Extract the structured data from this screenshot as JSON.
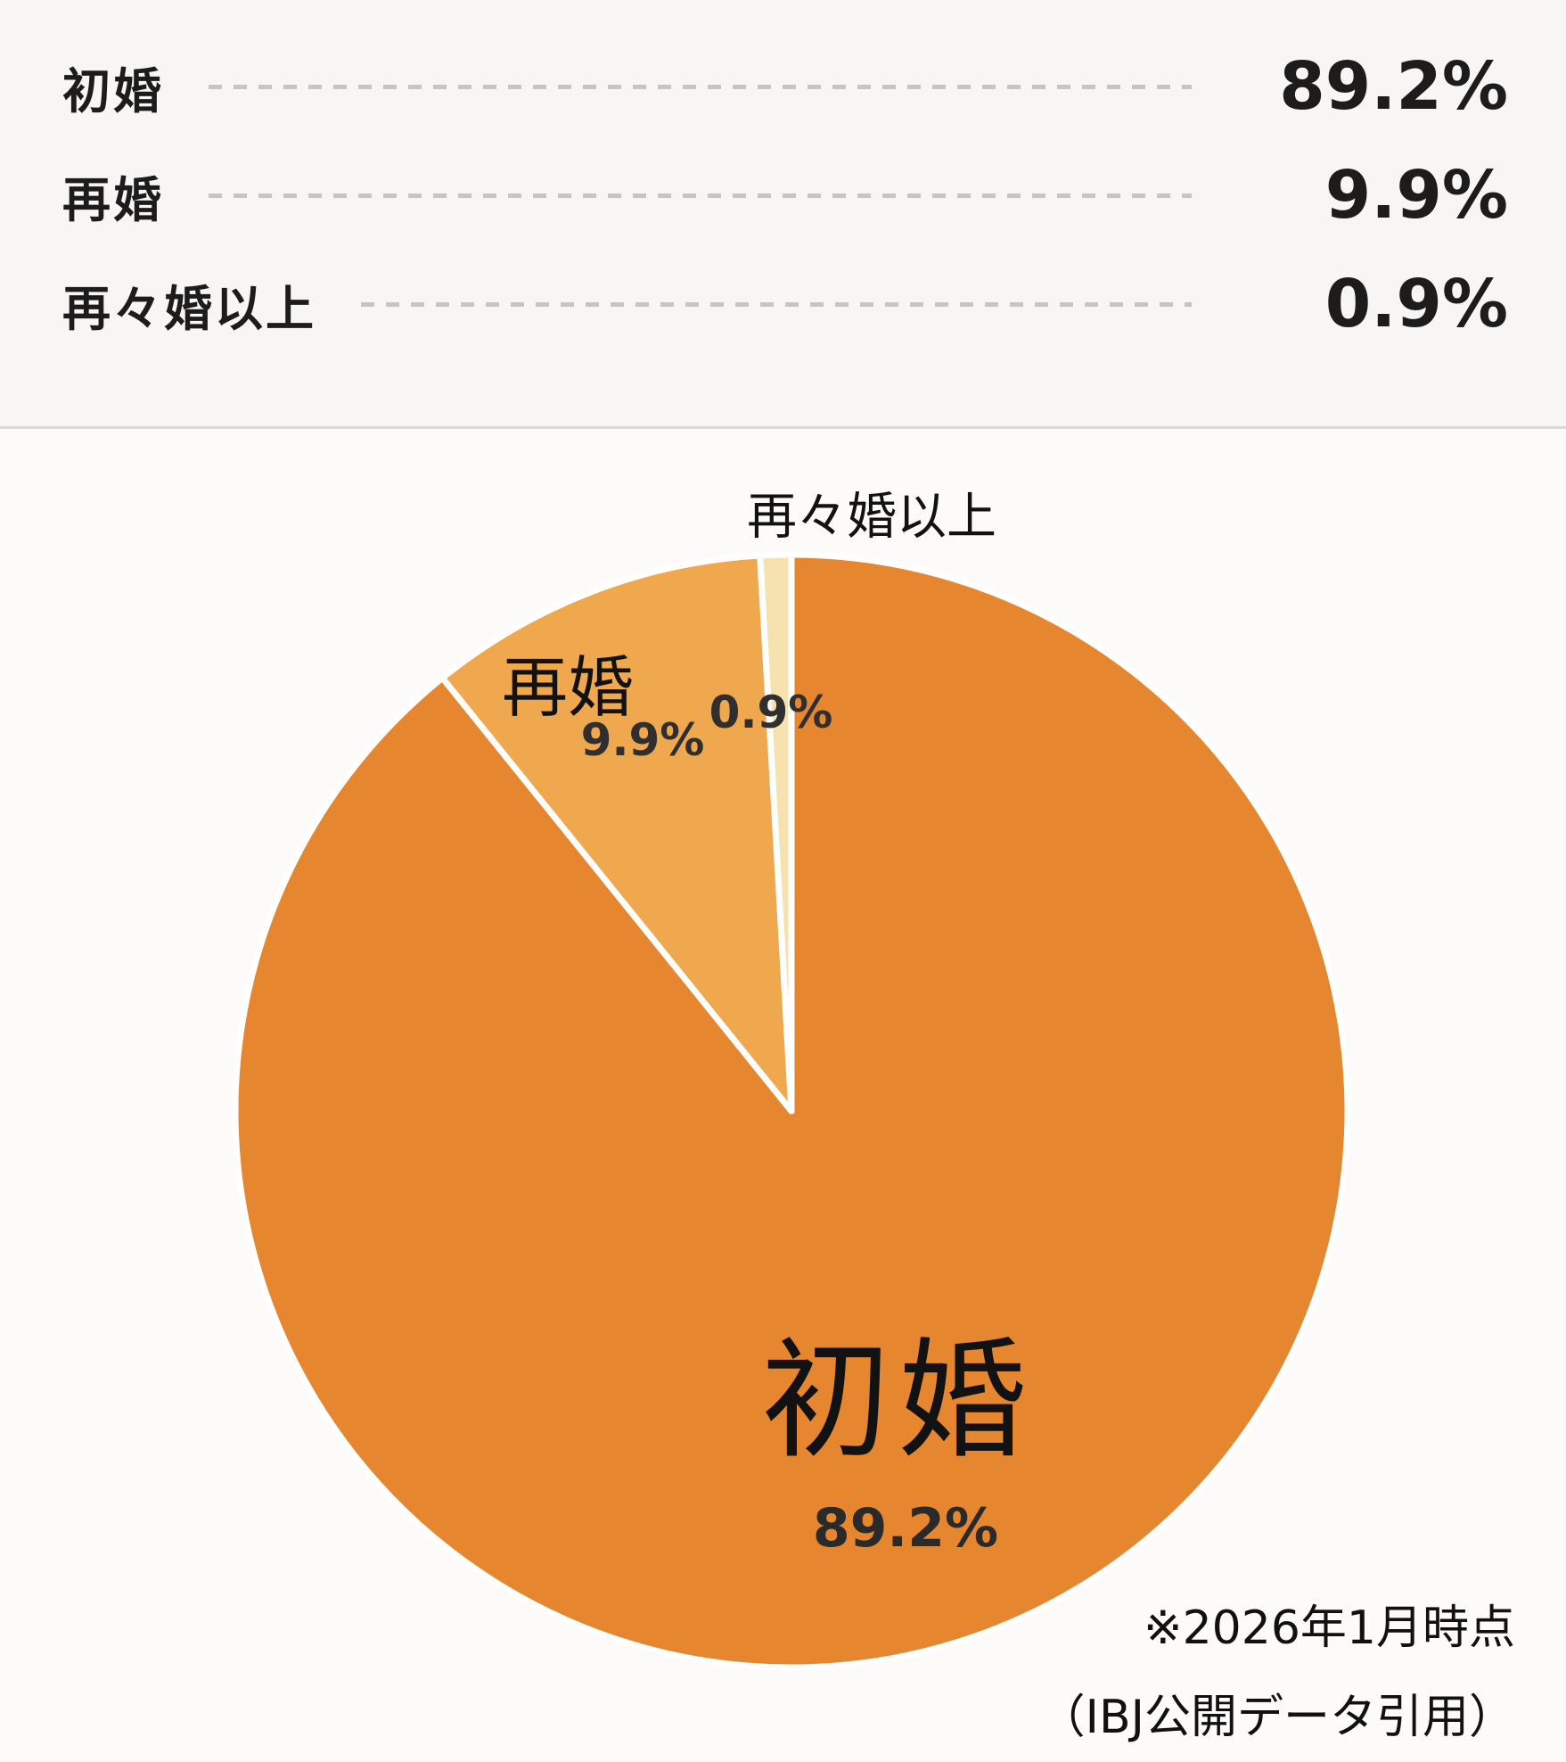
{
  "chart_data": {
    "type": "pie",
    "title": "",
    "categories": [
      "初婚",
      "再婚",
      "再々婚以上"
    ],
    "values": [
      89.2,
      9.9,
      0.9
    ],
    "display_values": [
      "89.2%",
      "9.9%",
      "0.9%"
    ],
    "unit": "%",
    "colors": [
      "#E6872F",
      "#F0A84E",
      "#F6E2AE"
    ],
    "slice_separator_color": "#FFFFFF",
    "slice_ids": [
      "first-marriage",
      "remarriage",
      "third-marriage-or-more"
    ],
    "start_angle_deg": 0,
    "direction": "clockwise",
    "labels_on_slices": true,
    "legend_position": "top-list"
  },
  "legend": {
    "items": [
      {
        "label": "初婚",
        "value": "89.2%"
      },
      {
        "label": "再婚",
        "value": "9.9%"
      },
      {
        "label": "再々婚以上",
        "value": "0.9%"
      }
    ]
  },
  "annotations": {
    "note_line1": "※2026年1月時点",
    "note_line2": "（IBJ公開データ引用）"
  },
  "colors": {
    "panel_top_bg": "#F7F6F4",
    "panel_bottom_bg": "#FCFBFA",
    "divider": "#DBD9D6",
    "dash_leader": "#C7C5C2",
    "text": "#1C1C1C"
  }
}
